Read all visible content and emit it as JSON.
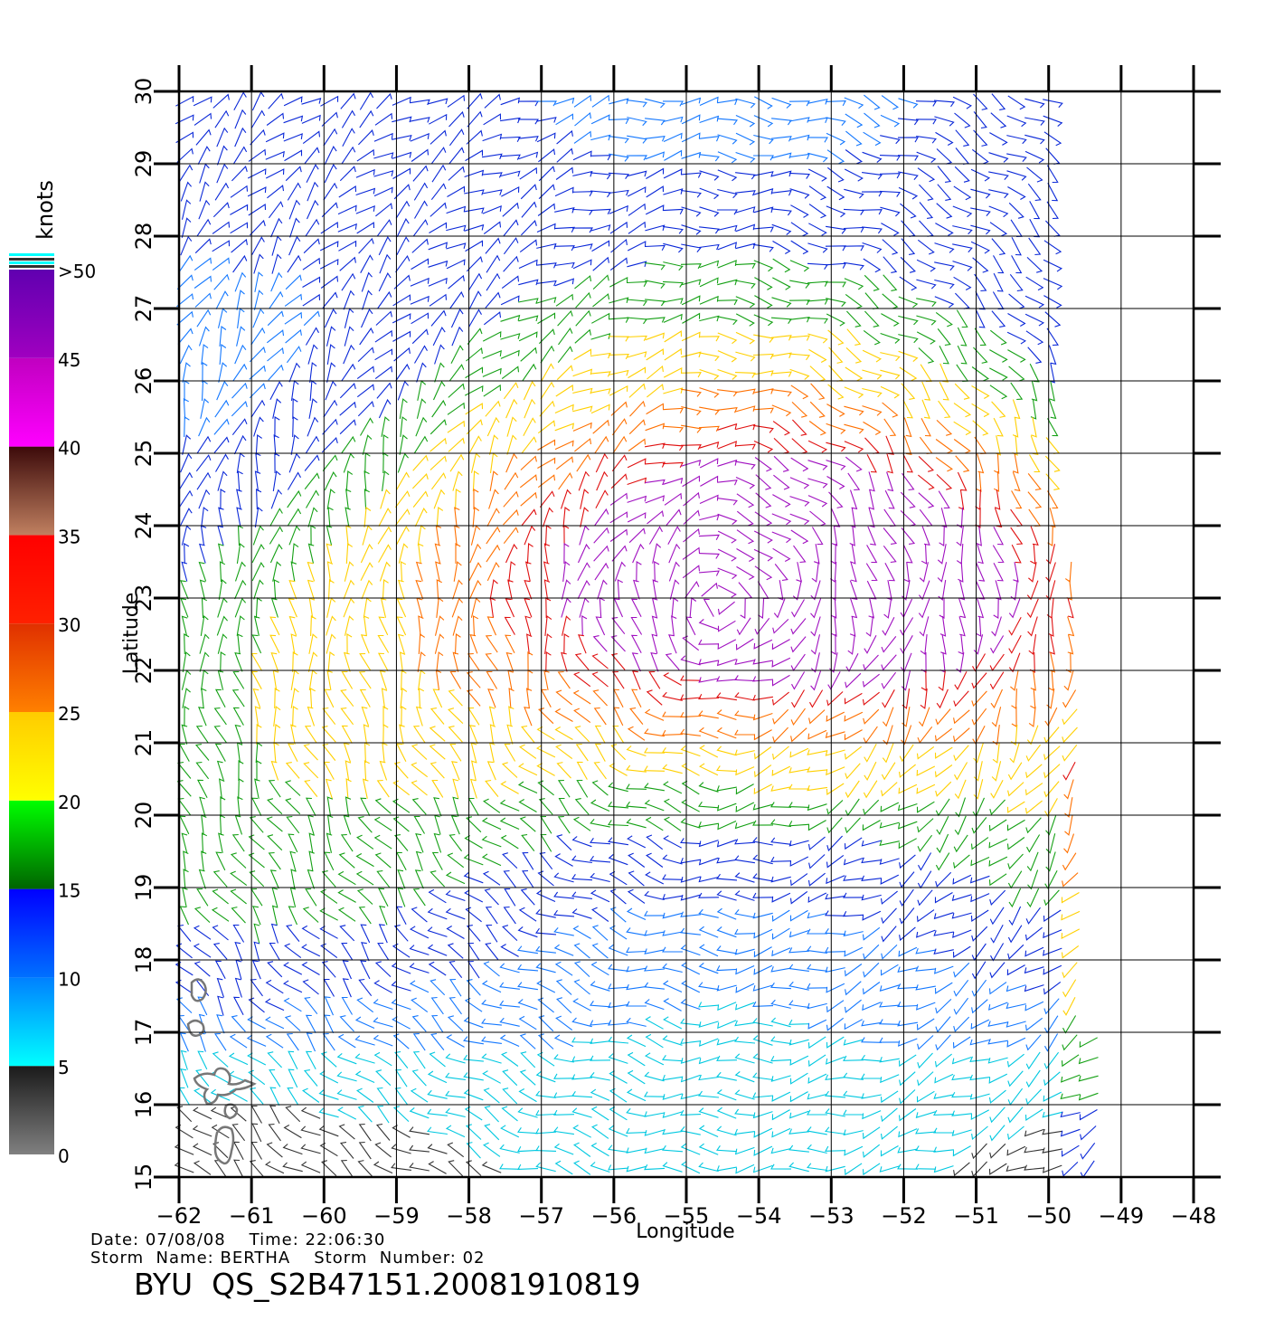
{
  "map": {
    "lon_range": [
      -62,
      -48
    ],
    "lat_range": [
      15,
      30
    ],
    "lon_ticks": [
      "−62",
      "−61",
      "−60",
      "−59",
      "−58",
      "−57",
      "−56",
      "−55",
      "−54",
      "−53",
      "−52",
      "−51",
      "−50",
      "−49",
      "−48"
    ],
    "lat_ticks": [
      "15",
      "16",
      "17",
      "18",
      "19",
      "20",
      "21",
      "22",
      "23",
      "24",
      "25",
      "26",
      "27",
      "28",
      "29",
      "30"
    ],
    "xlabel": "Longitude",
    "ylabel": "Latitude",
    "grid": true,
    "storm_center": {
      "lon": -54.5,
      "lat": 23.0
    },
    "wind_field_type": "scatterometer wind barbs"
  },
  "colorbar": {
    "unit": "knots",
    "labels": [
      "0",
      "5",
      "10",
      "15",
      "20",
      "25",
      "30",
      "35",
      "40",
      "45",
      ">50"
    ],
    "bands": [
      {
        "from": 0,
        "to": 5,
        "colors": [
          "#808080",
          "#1a1a1a"
        ]
      },
      {
        "from": 5,
        "to": 10,
        "colors": [
          "#00ffff",
          "#0080ff"
        ]
      },
      {
        "from": 10,
        "to": 15,
        "colors": [
          "#0070ff",
          "#0000ff"
        ]
      },
      {
        "from": 15,
        "to": 20,
        "colors": [
          "#006400",
          "#00ff00"
        ]
      },
      {
        "from": 20,
        "to": 25,
        "colors": [
          "#ffff00",
          "#ffcc00"
        ]
      },
      {
        "from": 25,
        "to": 30,
        "colors": [
          "#ff8000",
          "#e03000"
        ]
      },
      {
        "from": 30,
        "to": 35,
        "colors": [
          "#ff2000",
          "#ff0000"
        ]
      },
      {
        "from": 35,
        "to": 40,
        "colors": [
          "#c08060",
          "#3c0a0a"
        ]
      },
      {
        "from": 40,
        "to": 45,
        "colors": [
          "#ff00ff",
          "#c000c0"
        ]
      },
      {
        "from": 45,
        "to": 50,
        "colors": [
          "#a000c0",
          "#6000b0"
        ]
      }
    ]
  },
  "info": {
    "date_label": "Date:",
    "date": "07/08/08",
    "time_label": "Time:",
    "time": "22:06:30",
    "storm_name_label": "Storm  Name:",
    "storm_name": "BERTHA",
    "storm_number_label": "Storm  Number:",
    "storm_number": "02",
    "file_title": "BYU  QS_S2B47151.20081910819"
  }
}
